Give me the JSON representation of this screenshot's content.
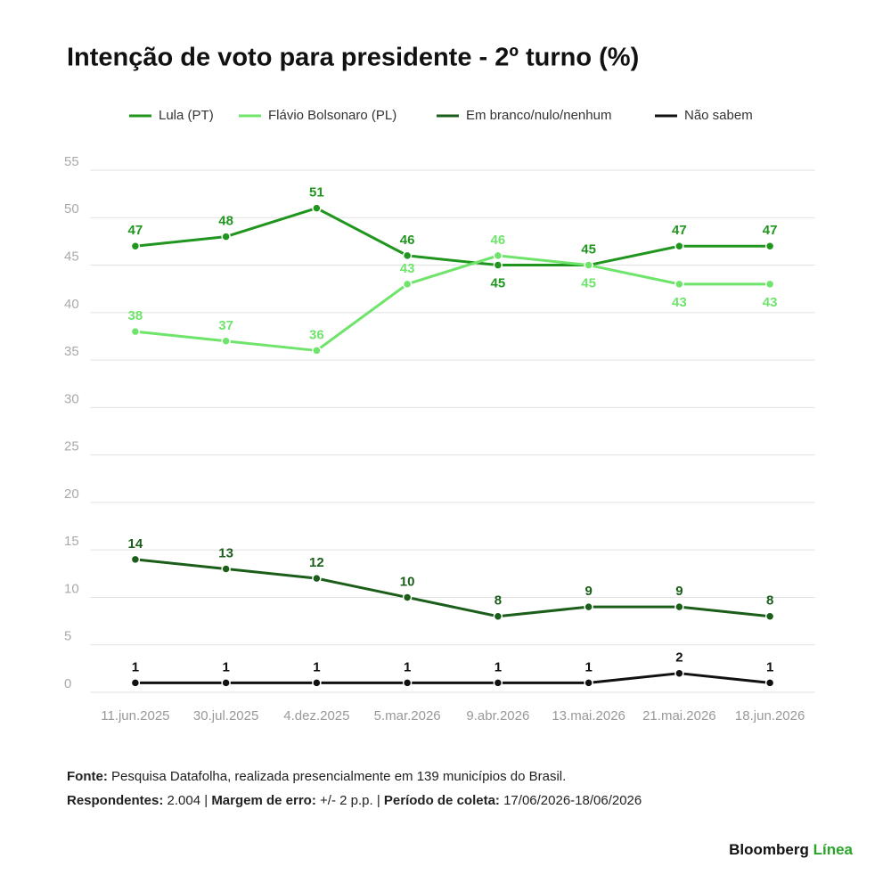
{
  "chart_data": {
    "type": "line",
    "title": "Intenção de voto para presidente - 2º turno (%)",
    "categories": [
      "11.jun.2025",
      "30.jul.2025",
      "4.dez.2025",
      "5.mar.2026",
      "9.abr.2026",
      "13.mai.2026",
      "21.mai.2026",
      "18.jun.2026"
    ],
    "series": [
      {
        "name": "Lula (PT)",
        "color": "#20961f",
        "values": [
          47,
          48,
          51,
          46,
          45,
          45,
          47,
          47
        ]
      },
      {
        "name": "Flávio Bolsonaro (PL)",
        "color": "#6ee46b",
        "values": [
          38,
          37,
          36,
          43,
          46,
          45,
          43,
          43
        ]
      },
      {
        "name": "Em branco/nulo/nenhum",
        "color": "#1b5e1a",
        "values": [
          14,
          13,
          12,
          10,
          8,
          9,
          9,
          8
        ]
      },
      {
        "name": "Não sabem",
        "color": "#111111",
        "values": [
          1,
          1,
          1,
          1,
          1,
          1,
          2,
          1
        ]
      }
    ],
    "ylim": [
      0,
      55
    ],
    "yticks": [
      0,
      5,
      10,
      15,
      20,
      25,
      30,
      35,
      40,
      45,
      50,
      55
    ],
    "grid": true
  },
  "footer": {
    "source_label": "Fonte:",
    "source_text": "Pesquisa Datafolha, realizada presencialmente em 139 municípios do Brasil.",
    "respondents_label": "Respondentes:",
    "respondents_text": "2.004 |",
    "margin_label": "Margem de erro:",
    "margin_text": "+/- 2 p.p. |",
    "period_label": "Período de coleta:",
    "period_text": "17/06/2026-18/06/2026"
  },
  "brand": {
    "name": "Bloomberg",
    "accent": "Línea"
  }
}
